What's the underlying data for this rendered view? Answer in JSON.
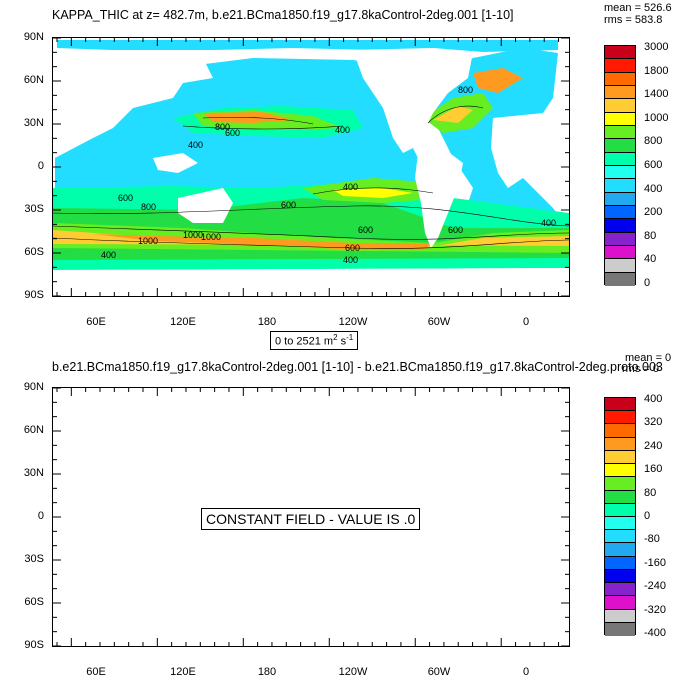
{
  "top_panel": {
    "title": "KAPPA_THIC at z= 482.7m, b.e21.BCma1850.f19_g17.8kaControl-2deg.001 [1-10]",
    "mean": "mean = 526.6",
    "rms": "rms = 583.8",
    "range_label": "0 to 2521 m",
    "range_unit_sup1": "2",
    "range_unit_s": " s",
    "range_unit_sup2": "-1",
    "contour_labels": [
      "800",
      "600",
      "400",
      "400",
      "600",
      "400",
      "1000",
      "1000",
      "600",
      "600",
      "400",
      "800",
      "400",
      "600",
      "800",
      "600",
      "400",
      "1000"
    ],
    "colorbar": {
      "labels": [
        "3000",
        "1800",
        "1400",
        "1000",
        "800",
        "600",
        "400",
        "200",
        "80",
        "40",
        "0"
      ],
      "colors": [
        "#c8001a",
        "#ff1a00",
        "#ff6a00",
        "#ff9a20",
        "#ffcc33",
        "#ffff00",
        "#66ee22",
        "#22dd44",
        "#00ffaa",
        "#22ffee",
        "#22ddff",
        "#22aaee",
        "#0066ff",
        "#0000ee",
        "#8822cc",
        "#dd11cc",
        "#cccccc",
        "#777777"
      ]
    }
  },
  "bottom_panel": {
    "title": "b.e21.BCma1850.f19_g17.8kaControl-2deg.001 [1-10] - b.e21.BCma1850.f19_g17.8kaControl-2deg.proto.003",
    "mean": "mean = 0",
    "rms": "rms = 0",
    "constant_text": "CONSTANT FIELD - VALUE IS .0",
    "colorbar": {
      "labels": [
        "400",
        "320",
        "240",
        "160",
        "80",
        "0",
        "-80",
        "-160",
        "-240",
        "-320",
        "-400"
      ],
      "colors": [
        "#c8001a",
        "#ff1a00",
        "#ff6a00",
        "#ff9a20",
        "#ffcc33",
        "#ffff00",
        "#66ee22",
        "#22dd44",
        "#00ffaa",
        "#22ffee",
        "#22ddff",
        "#22aaee",
        "#0066ff",
        "#0000ee",
        "#8822cc",
        "#dd11cc",
        "#cccccc",
        "#777777"
      ]
    }
  },
  "axes": {
    "lat_labels": [
      "90N",
      "60N",
      "30N",
      "0",
      "30S",
      "60S",
      "90S"
    ],
    "lon_labels": [
      "60E",
      "120E",
      "180",
      "120W",
      "60W",
      "0"
    ]
  }
}
